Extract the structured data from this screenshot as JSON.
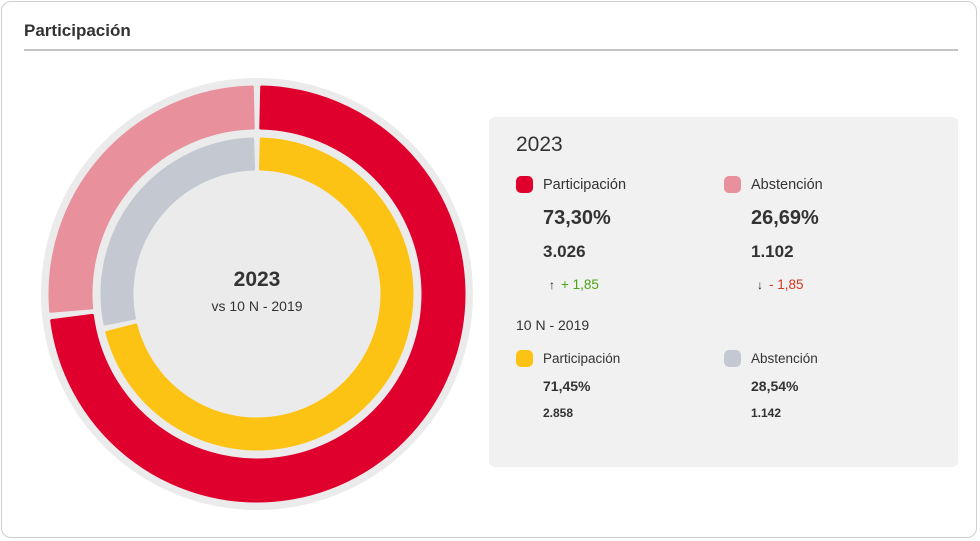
{
  "header": {
    "title": "Participación"
  },
  "center": {
    "year": "2023",
    "subtitle": "vs 10 N - 2019"
  },
  "colors": {
    "participacion_2023": "#e0002e",
    "abstencion_2023": "#e8909c",
    "participacion_2019": "#fdc314",
    "abstencion_2019": "#c3c8d1",
    "positive": "#4aa314",
    "negative": "#d4361f"
  },
  "panel": {
    "current": {
      "year": "2023",
      "participacion": {
        "label": "Participación",
        "percent": "73,30%",
        "count": "3.026",
        "delta": "+ 1,85",
        "delta_arrow": "↑"
      },
      "abstencion": {
        "label": "Abstención",
        "percent": "26,69%",
        "count": "1.102",
        "delta": "- 1,85",
        "delta_arrow": "↓"
      }
    },
    "previous": {
      "title": "10 N - 2019",
      "participacion": {
        "label": "Participación",
        "percent": "71,45%",
        "count": "2.858"
      },
      "abstencion": {
        "label": "Abstención",
        "percent": "28,54%",
        "count": "1.142"
      }
    }
  },
  "chart_data": {
    "type": "pie",
    "series": [
      {
        "name": "2023",
        "categories": [
          "Participación",
          "Abstención"
        ],
        "values": [
          73.3,
          26.69
        ]
      },
      {
        "name": "10 N - 2019",
        "categories": [
          "Participación",
          "Abstención"
        ],
        "values": [
          71.45,
          28.54
        ]
      }
    ]
  }
}
